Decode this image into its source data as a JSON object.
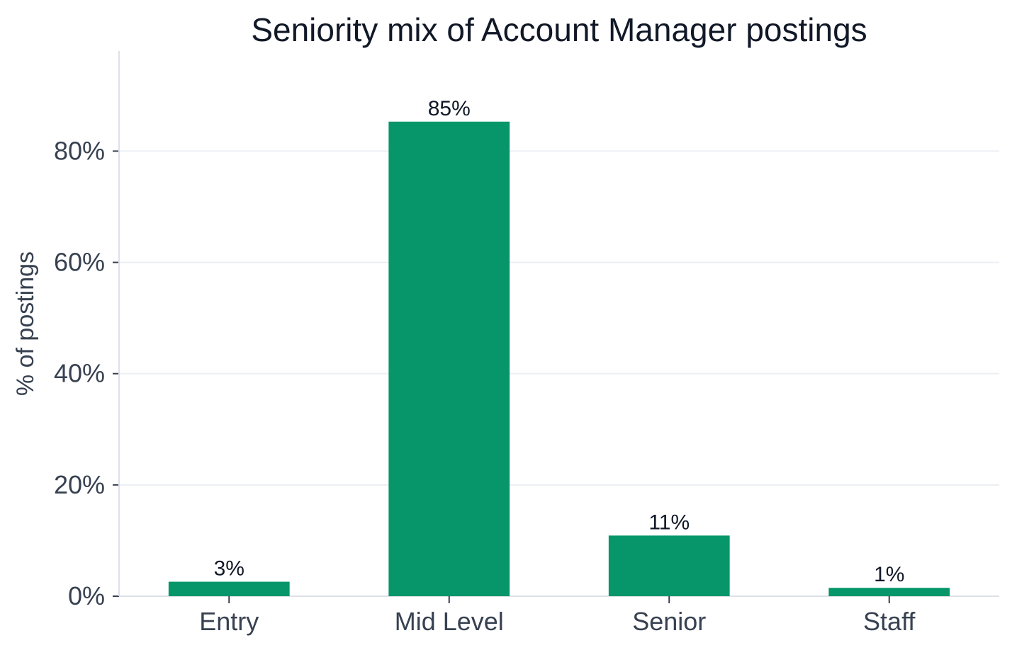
{
  "chart_data": {
    "type": "bar",
    "title": "Seniority mix of Account Manager postings",
    "xlabel": "",
    "ylabel": "% of postings",
    "categories": [
      "Entry",
      "Mid Level",
      "Senior",
      "Staff"
    ],
    "values": [
      2.6,
      85.3,
      10.9,
      1.5
    ],
    "value_labels": [
      "3%",
      "85%",
      "11%",
      "1%"
    ],
    "ylim": [
      0,
      98
    ],
    "y_ticks": [
      0,
      20,
      40,
      60,
      80
    ],
    "y_tick_labels": [
      "0%",
      "20%",
      "40%",
      "60%",
      "80%"
    ],
    "grid": "horizontal",
    "legend": "none",
    "colors": {
      "bar": "#06966A",
      "grid": "#ECEFF3",
      "axis": "#DDE1E6",
      "text": "#374151",
      "title": "#111827"
    }
  }
}
